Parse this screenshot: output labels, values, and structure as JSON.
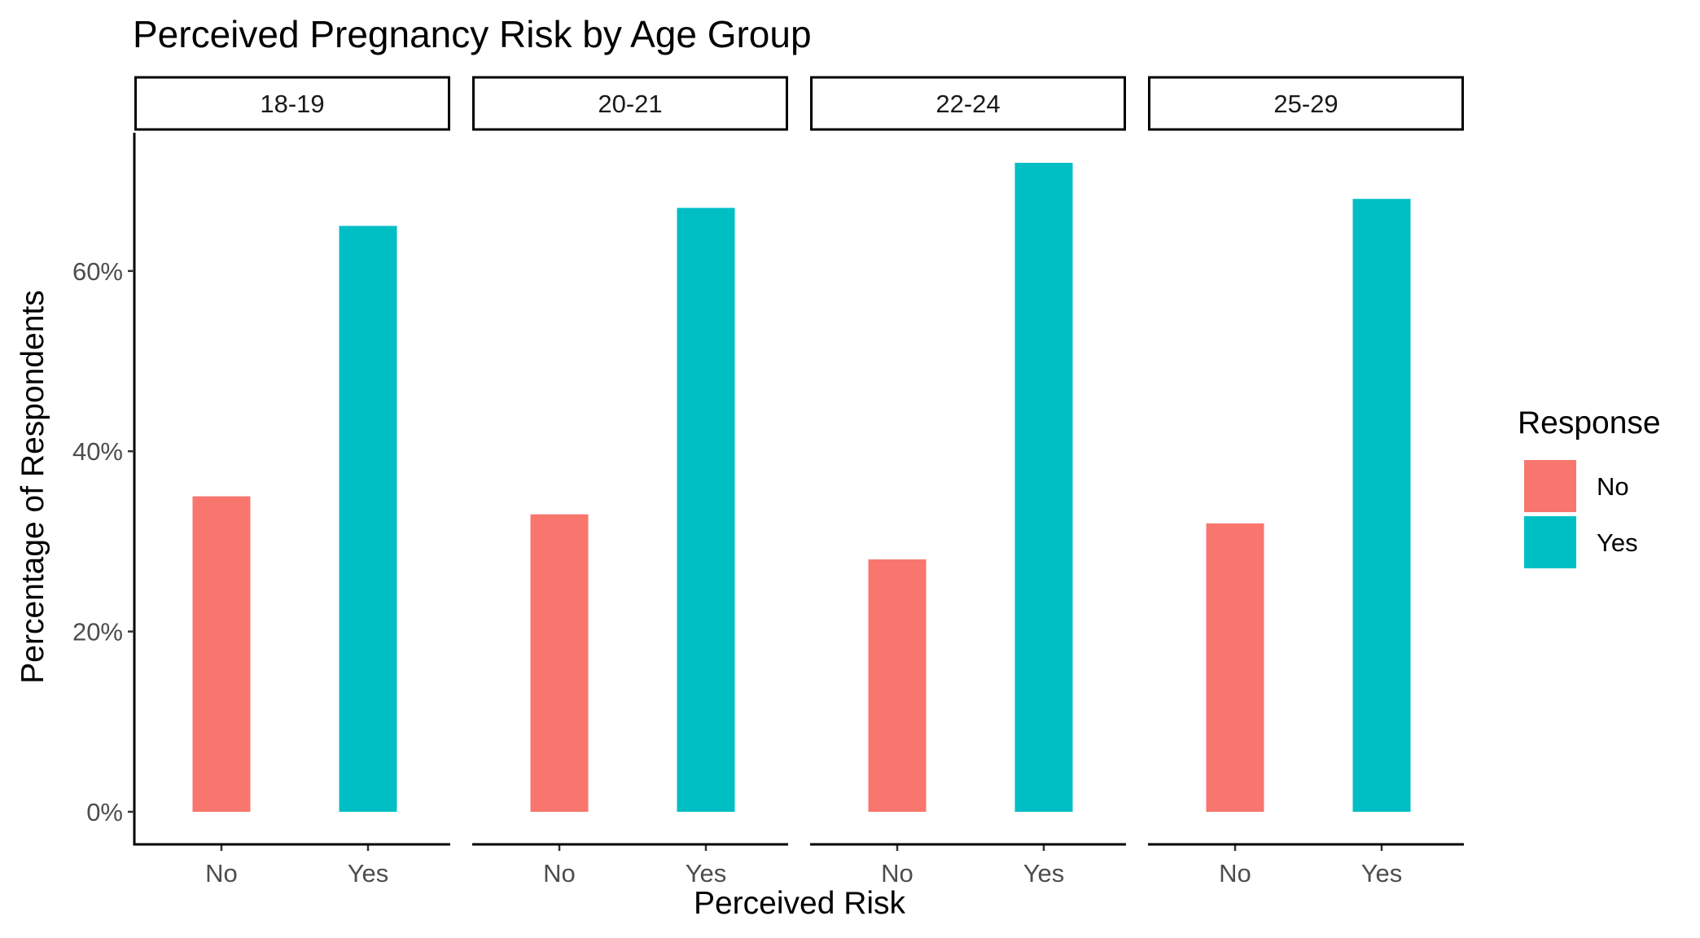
{
  "chart_data": {
    "type": "bar",
    "title": "Perceived Pregnancy Risk by Age Group",
    "xlabel": "Perceived Risk",
    "ylabel": "Percentage of Respondents",
    "ylim": [
      0,
      0.76
    ],
    "y_ticks": [
      0,
      0.2,
      0.4,
      0.6
    ],
    "y_tick_labels": [
      "0%",
      "20%",
      "40%",
      "60%"
    ],
    "categories": [
      "No",
      "Yes"
    ],
    "facets": [
      {
        "label": "18-19",
        "values": [
          0.35,
          0.65
        ]
      },
      {
        "label": "20-21",
        "values": [
          0.33,
          0.67
        ]
      },
      {
        "label": "22-24",
        "values": [
          0.28,
          0.72
        ]
      },
      {
        "label": "25-29",
        "values": [
          0.32,
          0.68
        ]
      }
    ],
    "legend": {
      "title": "Response",
      "position": "right",
      "items": [
        {
          "label": "No",
          "color": "#F8766D"
        },
        {
          "label": "Yes",
          "color": "#00BFC4"
        }
      ]
    },
    "colors": {
      "No": "#F8766D",
      "Yes": "#00BFC4"
    },
    "grid": false
  }
}
